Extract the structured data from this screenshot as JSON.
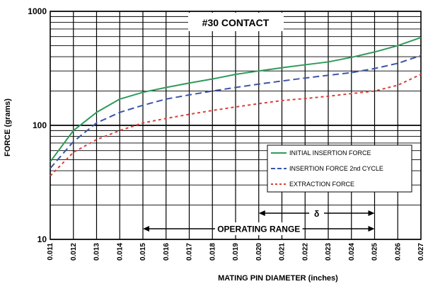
{
  "chart_data": {
    "type": "line",
    "title": "#30 CONTACT",
    "xlabel": "MATING PIN  DIAMETER (inches)",
    "ylabel": "FORCE (grams)",
    "y_scale": "log",
    "ylim": [
      10,
      1000
    ],
    "xlim": [
      0.011,
      0.027
    ],
    "grid": true,
    "legend_position": "right",
    "x_ticks": [
      "0.011",
      "0.012",
      "0.013",
      "0.014",
      "0.015",
      "0.016",
      "0.017",
      "0.018",
      "0.019",
      "0.020",
      "0.021",
      "0.022",
      "0.023",
      "0.024",
      "0.025",
      "0.026",
      "0.027"
    ],
    "y_ticks": [
      "1000",
      "100",
      "10"
    ],
    "x": [
      0.011,
      0.012,
      0.013,
      0.014,
      0.015,
      0.016,
      0.017,
      0.018,
      0.019,
      0.02,
      0.021,
      0.022,
      0.023,
      0.024,
      0.025,
      0.026,
      0.027
    ],
    "series": [
      {
        "name": "INITIAL INSERTION FORCE",
        "color": "#2e9a5c",
        "dash": "solid",
        "values": [
          48,
          90,
          130,
          170,
          195,
          215,
          235,
          255,
          280,
          300,
          320,
          340,
          360,
          395,
          440,
          500,
          590
        ]
      },
      {
        "name": "INSERTION FORCE 2nd CYCLE",
        "color": "#3b55a8",
        "dash": "dashed",
        "values": [
          42,
          72,
          105,
          130,
          150,
          170,
          185,
          200,
          215,
          230,
          245,
          260,
          275,
          290,
          315,
          350,
          410
        ]
      },
      {
        "name": "EXTRACTION FORCE",
        "color": "#d9403a",
        "dash": "dotted",
        "values": [
          36,
          58,
          75,
          90,
          105,
          115,
          125,
          135,
          145,
          155,
          165,
          172,
          180,
          190,
          200,
          225,
          280
        ]
      }
    ],
    "annotations": [
      {
        "text": "OPERATING RANGE",
        "x_from": 0.015,
        "x_to": 0.025
      },
      {
        "text": "δ",
        "x_from": 0.02,
        "x_to": 0.025
      }
    ]
  }
}
